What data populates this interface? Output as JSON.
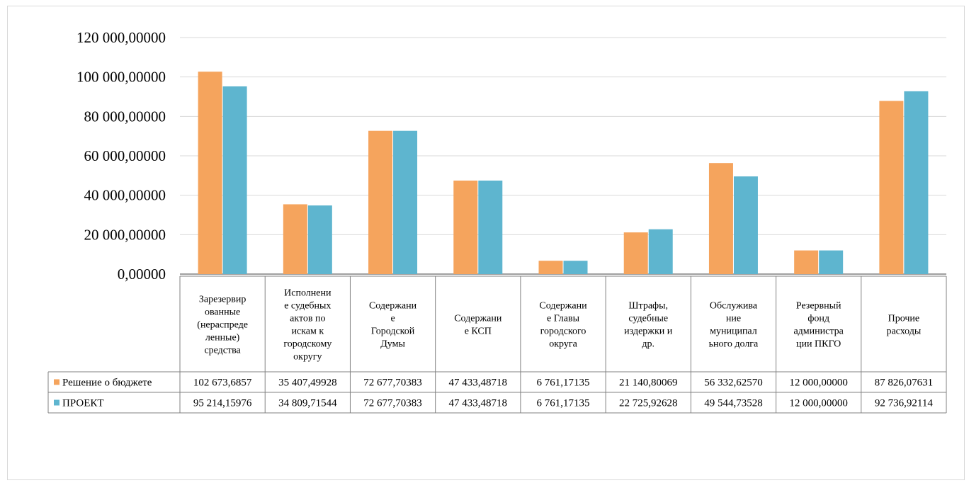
{
  "chart_data": {
    "type": "bar",
    "title": "",
    "xlabel": "",
    "ylabel": "",
    "ylim": [
      0,
      120000
    ],
    "y_ticks": [
      "0,00000",
      "20 000,00000",
      "40 000,00000",
      "60 000,00000",
      "80 000,00000",
      "100 000,00000",
      "120 000,00000"
    ],
    "y_tick_values": [
      0,
      20000,
      40000,
      60000,
      80000,
      100000,
      120000
    ],
    "grid": true,
    "legend": "data-table-left",
    "categories": [
      [
        "Зарезервир",
        "ованные",
        "(нераспреде",
        "ленные)",
        "средства"
      ],
      [
        "Исполнени",
        "е судебных",
        "актов по",
        "искам к",
        "городскому",
        "округу"
      ],
      [
        "Содержани",
        "е",
        "Городской",
        "Думы"
      ],
      [
        "Содержани",
        "е КСП"
      ],
      [
        "Содержани",
        "е Главы",
        "городского",
        "округа"
      ],
      [
        "Штрафы,",
        "судебные",
        "издержки и",
        "др."
      ],
      [
        "Обслужива",
        "ние",
        "муниципал",
        "ьного долга"
      ],
      [
        "Резервный",
        "фонд",
        "администра",
        "ции ПКГО"
      ],
      [
        "Прочие",
        "расходы"
      ]
    ],
    "series": [
      {
        "name": "Решение о бюджете",
        "color": "#f5a45d",
        "values": [
          102673.6857,
          35407.49928,
          72677.70383,
          47433.48718,
          6761.17135,
          21140.80069,
          56332.6257,
          12000.0,
          87826.07631
        ],
        "labels": [
          "102 673,6857",
          "35 407,49928",
          "72 677,70383",
          "47 433,48718",
          "6 761,17135",
          "21 140,80069",
          "56 332,62570",
          "12 000,00000",
          "87 826,07631"
        ]
      },
      {
        "name": "ПРОЕКТ",
        "color": "#5eb5cf",
        "values": [
          95214.15976,
          34809.71544,
          72677.70383,
          47433.48718,
          6761.17135,
          22725.92628,
          49544.73528,
          12000.0,
          92736.92114
        ],
        "labels": [
          "95 214,15976",
          "34 809,71544",
          "72 677,70383",
          "47 433,48718",
          "6 761,17135",
          "22 725,92628",
          "49 544,73528",
          "12 000,00000",
          "92 736,92114"
        ]
      }
    ]
  }
}
